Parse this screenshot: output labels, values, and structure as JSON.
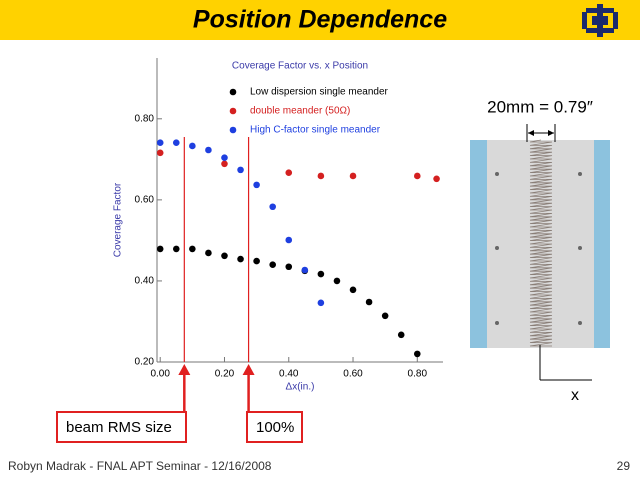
{
  "header": {
    "title": "Position Dependence"
  },
  "chart_data": {
    "type": "scatter",
    "title": "Coverage Factor vs. x Position",
    "x_label": "Δx(in.)",
    "y_label": "Coverage Factor",
    "xlim": [
      -0.01,
      0.88
    ],
    "ylim": [
      0.2,
      0.95
    ],
    "xticks": [
      {
        "value": 0,
        "label": "0.00"
      },
      {
        "value": 0.2,
        "label": "0.20"
      },
      {
        "value": 0.4,
        "label": "0.40"
      },
      {
        "value": 0.6,
        "label": "0.60"
      },
      {
        "value": 0.8,
        "label": "0.80"
      }
    ],
    "yticks": [
      {
        "value": 0.2,
        "label": "0.20"
      },
      {
        "value": 0.4,
        "label": "0.40"
      },
      {
        "value": 0.6,
        "label": "0.60"
      },
      {
        "value": 0.8,
        "label": "0.80"
      }
    ],
    "series": [
      {
        "name": "Low dispersion single meander",
        "color": "#000000",
        "x": [
          0,
          0.05,
          0.1,
          0.15,
          0.2,
          0.25,
          0.3,
          0.35,
          0.4,
          0.45,
          0.5,
          0.55,
          0.6,
          0.65,
          0.7,
          0.75,
          0.8
        ],
        "values": [
          0.479,
          0.479,
          0.479,
          0.469,
          0.462,
          0.454,
          0.449,
          0.44,
          0.435,
          0.425,
          0.417,
          0.4,
          0.378,
          0.348,
          0.314,
          0.267,
          0.22
        ]
      },
      {
        "name": "double meander (50Ω)",
        "color": "#d42020",
        "x": [
          0,
          0.2,
          0.4,
          0.5,
          0.6,
          0.8,
          0.86
        ],
        "values": [
          0.716,
          0.689,
          0.667,
          0.659,
          0.659,
          0.659,
          0.652
        ]
      },
      {
        "name": "High C-factor single meander",
        "color": "#1e3fe0",
        "x": [
          0,
          0.05,
          0.1,
          0.15,
          0.2,
          0.25,
          0.3,
          0.35,
          0.4,
          0.45,
          0.5
        ],
        "values": [
          0.741,
          0.741,
          0.733,
          0.723,
          0.704,
          0.674,
          0.637,
          0.583,
          0.501,
          0.427,
          0.346
        ]
      }
    ],
    "annotations": [
      {
        "x": 0.075,
        "label": "beam RMS size"
      },
      {
        "x": 0.275,
        "label": "100%"
      }
    ]
  },
  "figure": {
    "dimension_label": "20mm = 0.79″",
    "axis_label": "x"
  },
  "footer": {
    "author": "Robyn Madrak - FNAL APT Seminar - 12/16/2008",
    "page": "29"
  }
}
